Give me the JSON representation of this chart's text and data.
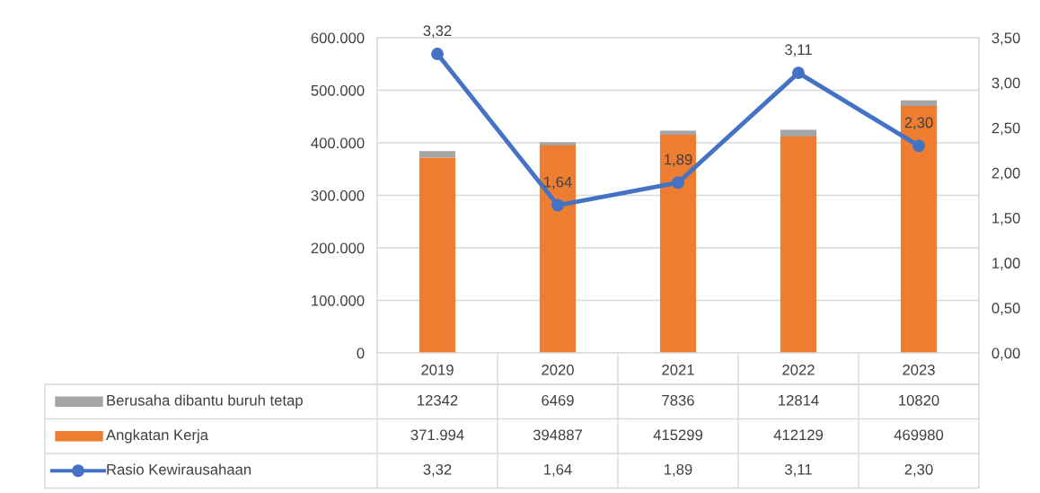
{
  "chart_data": {
    "type": "bar",
    "stacked": true,
    "categories": [
      "2019",
      "2020",
      "2021",
      "2022",
      "2023"
    ],
    "series": [
      {
        "name": "Angkatan Kerja",
        "color": "#ed7d31",
        "values": [
          371994,
          394887,
          415299,
          412129,
          469980
        ],
        "value_labels": [
          "371.994",
          "394887",
          "415299",
          "412129",
          "469980"
        ]
      },
      {
        "name": "Berusaha dibantu buruh tetap",
        "color": "#a5a5a5",
        "values": [
          12342,
          6469,
          7836,
          12814,
          10820
        ],
        "value_labels": [
          "12342",
          "6469",
          "7836",
          "12814",
          "10820"
        ]
      },
      {
        "name": "Rasio Kewirausahaan",
        "type": "line",
        "axis": "y2",
        "color": "#4472c4",
        "values": [
          3.32,
          1.64,
          1.89,
          3.11,
          2.3
        ],
        "value_labels": [
          "3,32",
          "1,64",
          "1,89",
          "3,11",
          "2,30"
        ]
      }
    ],
    "ylim": [
      0,
      600000
    ],
    "yticks": [
      0,
      {
        "value": 100000,
        "label": "100.000"
      },
      {
        "value": 200000,
        "label": "200.000"
      },
      {
        "value": 300000,
        "label": "300.000"
      },
      {
        "value": 400000,
        "label": "400.000"
      },
      {
        "value": 500000,
        "label": "500.000"
      },
      {
        "value": 600000,
        "label": "600.000"
      }
    ],
    "y2lim": [
      0,
      3.5
    ],
    "y2ticks": [
      {
        "value": 0,
        "label": "0,00"
      },
      {
        "value": 0.5,
        "label": "0,50"
      },
      {
        "value": 1,
        "label": "1,00"
      },
      {
        "value": 1.5,
        "label": "1,50"
      },
      {
        "value": 2,
        "label": "2,00"
      },
      {
        "value": 2.5,
        "label": "2,50"
      },
      {
        "value": 3,
        "label": "3,00"
      },
      {
        "value": 3.5,
        "label": "3,50"
      }
    ],
    "grid": "y",
    "legend": "bottom",
    "marker": "circle",
    "line_style": "solid"
  }
}
